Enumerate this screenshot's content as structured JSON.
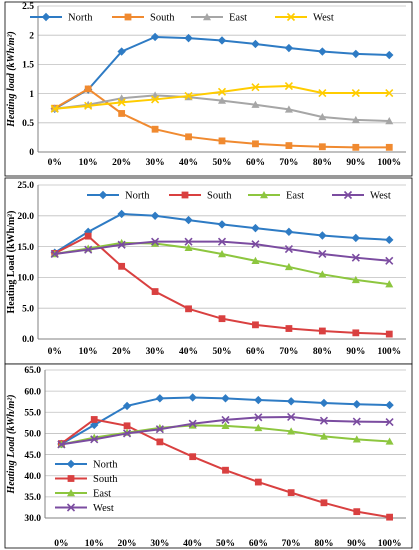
{
  "colors": {
    "north": "#2e7bc4",
    "south": "#f08a30",
    "east": "#a6a6a6",
    "west": "#ffcc00"
  },
  "chart_data": [
    {
      "type": "line",
      "x": [
        "0%",
        "10%",
        "20%",
        "30%",
        "40%",
        "50%",
        "60%",
        "70%",
        "80%",
        "90%",
        "100%"
      ],
      "ylabel": "Heating load (kWh/m²)",
      "ylabel_style": "italic",
      "yticks": [
        "0",
        "0.5",
        "1",
        "1.5",
        "2",
        "2.5"
      ],
      "ylim": [
        0,
        2.5
      ],
      "grid": true,
      "legend": "top-left, horizontal",
      "series": [
        {
          "name": "North",
          "color": "#2e7bc4",
          "marker": "diamond",
          "values": [
            0.74,
            1.07,
            1.72,
            1.97,
            1.95,
            1.91,
            1.85,
            1.78,
            1.72,
            1.68,
            1.66
          ]
        },
        {
          "name": "South",
          "color": "#f08a30",
          "marker": "square",
          "values": [
            0.75,
            1.08,
            0.66,
            0.39,
            0.26,
            0.19,
            0.14,
            0.11,
            0.09,
            0.08,
            0.08
          ]
        },
        {
          "name": "East",
          "color": "#a6a6a6",
          "marker": "triangle",
          "values": [
            0.74,
            0.81,
            0.92,
            0.97,
            0.94,
            0.88,
            0.81,
            0.73,
            0.6,
            0.55,
            0.53
          ]
        },
        {
          "name": "West",
          "color": "#ffcc00",
          "marker": "x",
          "values": [
            0.74,
            0.79,
            0.85,
            0.9,
            0.96,
            1.03,
            1.11,
            1.13,
            1.01,
            1.01,
            1.01
          ]
        }
      ]
    },
    {
      "type": "line",
      "x": [
        "0%",
        "10%",
        "20%",
        "30%",
        "40%",
        "50%",
        "60%",
        "70%",
        "80%",
        "90%",
        "100%"
      ],
      "ylabel": "Heating Load (kWh/m²)",
      "ylabel_style": "normal",
      "yticks": [
        "0.0",
        "5.0",
        "10.0",
        "15.0",
        "20.0",
        "25.0"
      ],
      "ylim": [
        0,
        25
      ],
      "grid": true,
      "legend": "top, horizontal",
      "series": [
        {
          "name": "North",
          "color": "#2e7bc4",
          "marker": "diamond",
          "values": [
            14.0,
            17.4,
            20.3,
            20.0,
            19.3,
            18.6,
            18.0,
            17.4,
            16.8,
            16.4,
            16.1
          ]
        },
        {
          "name": "South",
          "color": "#d94040",
          "marker": "square",
          "values": [
            13.9,
            16.7,
            11.8,
            7.7,
            4.9,
            3.3,
            2.3,
            1.7,
            1.3,
            1.0,
            0.8
          ]
        },
        {
          "name": "East",
          "color": "#8dc63f",
          "marker": "triangle",
          "values": [
            13.8,
            14.7,
            15.6,
            15.5,
            14.8,
            13.8,
            12.7,
            11.7,
            10.5,
            9.6,
            8.9
          ]
        },
        {
          "name": "West",
          "color": "#7b4ca0",
          "marker": "x",
          "values": [
            13.8,
            14.5,
            15.3,
            15.8,
            15.8,
            15.8,
            15.4,
            14.6,
            13.8,
            13.2,
            12.7
          ]
        }
      ]
    },
    {
      "type": "line",
      "x": [
        "0%",
        "10%",
        "20%",
        "30%",
        "40%",
        "50%",
        "60%",
        "70%",
        "80%",
        "90%",
        "100%"
      ],
      "ylabel": "Heating Load (kWh/m²)",
      "ylabel_style": "italic",
      "yticks": [
        "30.0",
        "35.0",
        "40.0",
        "45.0",
        "50.0",
        "55.0",
        "60.0",
        "65.0"
      ],
      "ylim": [
        30,
        65
      ],
      "grid": true,
      "legend": "bottom-left, vertical",
      "series": [
        {
          "name": "North",
          "color": "#2e7bc4",
          "marker": "diamond",
          "values": [
            47.5,
            52.0,
            56.5,
            58.3,
            58.5,
            58.3,
            57.9,
            57.6,
            57.2,
            56.9,
            56.7
          ]
        },
        {
          "name": "South",
          "color": "#d94040",
          "marker": "square",
          "values": [
            47.6,
            53.3,
            51.8,
            48.0,
            44.5,
            41.3,
            38.5,
            36.0,
            33.6,
            31.5,
            30.2
          ]
        },
        {
          "name": "East",
          "color": "#8dc63f",
          "marker": "triangle",
          "values": [
            47.4,
            49.0,
            50.2,
            51.3,
            51.9,
            51.8,
            51.3,
            50.5,
            49.3,
            48.6,
            48.1
          ]
        },
        {
          "name": "West",
          "color": "#7b4ca0",
          "marker": "x",
          "values": [
            47.4,
            48.6,
            50.0,
            51.0,
            52.3,
            53.2,
            53.8,
            53.9,
            53.0,
            52.8,
            52.7
          ]
        }
      ]
    }
  ]
}
